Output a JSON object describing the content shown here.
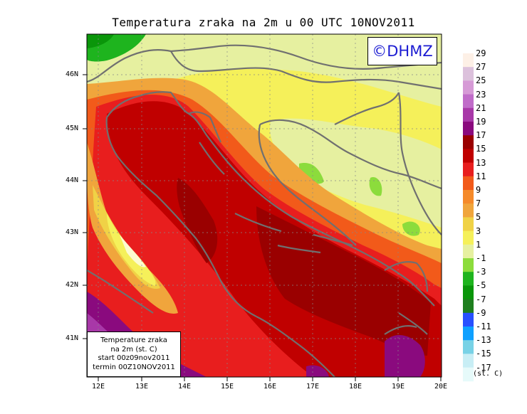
{
  "title": "Temperatura zraka na 2m u 00 UTC 10NOV2011",
  "logo": "©DHMZ",
  "info_box": {
    "line1": "Temperature zraka",
    "line2": "na 2m (st. C)",
    "line3": "start 00z09nov2011",
    "line4": "termin 00Z10NOV2011"
  },
  "map": {
    "lon_range": [
      11.8,
      20.0
    ],
    "lat_range": [
      40.3,
      46.8
    ],
    "lat_labels": [
      "46N",
      "45N",
      "44N",
      "43N",
      "42N",
      "41N"
    ],
    "lon_labels": [
      "12E",
      "13E",
      "14E",
      "15E",
      "16E",
      "17E",
      "18E",
      "19E",
      "20E"
    ],
    "gridlines": "dotted"
  },
  "colorbar": {
    "unit": "(st. C)",
    "labels": [
      "29",
      "27",
      "25",
      "23",
      "21",
      "19",
      "17",
      "15",
      "13",
      "11",
      "9",
      "7",
      "5",
      "3",
      "1",
      "-1",
      "-3",
      "-5",
      "-7",
      "-9",
      "-11",
      "-13",
      "-15",
      "-17"
    ],
    "colors": [
      "#fdf0e6",
      "#dcc1dc",
      "#d69ad6",
      "#c06cc9",
      "#a838a8",
      "#8a0a7e",
      "#9a0000",
      "#c00000",
      "#e81e1e",
      "#f25a1a",
      "#f58a2a",
      "#f0a53c",
      "#f0d246",
      "#f5f05a",
      "#e6f0a0",
      "#8cdc3c",
      "#1eb41e",
      "#0a960a",
      "#1e7f1e",
      "#2850ff",
      "#0ea0ff",
      "#78d2e6",
      "#c8eef5",
      "#e6fafa"
    ]
  }
}
